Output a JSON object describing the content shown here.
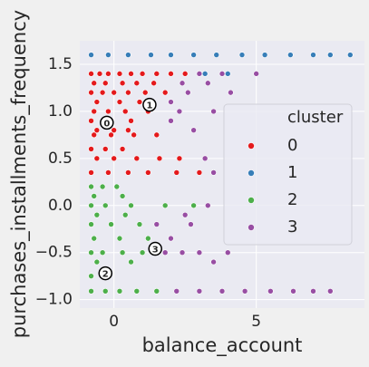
{
  "chart_data": {
    "type": "scatter",
    "x_label": "balance_account",
    "y_label": "purchases_installments_frequency",
    "xlim": [
      -1.2,
      8.8
    ],
    "ylim": [
      -1.09,
      1.75
    ],
    "xticks": [
      0,
      5
    ],
    "yticks": [
      {
        "value": -1.0,
        "label": "−1.0"
      },
      {
        "value": -0.5,
        "label": "−0.5"
      },
      {
        "value": 0.0,
        "label": "0.0"
      },
      0.5,
      {
        "value": 1.0,
        "label": "1.0"
      },
      1.5
    ],
    "grid": true,
    "legend_title": "cluster",
    "legend": "center right",
    "series": [
      {
        "name": "0",
        "color": "#e41a1c",
        "x": [
          -0.8,
          -0.5,
          -0.2,
          0.2,
          0.6,
          1.0,
          1.5,
          2.0,
          2.5,
          -0.7,
          -0.3,
          0.3,
          0.8,
          1.4,
          -0.8,
          -0.4,
          0,
          0.5,
          1.1,
          1.8,
          -0.6,
          0.2,
          0.9,
          -0.7,
          -0.2,
          0.4,
          1.2,
          -0.8,
          0.6,
          -0.6,
          0,
          0.5,
          -0.7,
          -0.1,
          0.7,
          1.5,
          -0.8,
          -0.3,
          0.3,
          -0.6,
          0,
          0.8,
          1.6,
          2.3,
          -0.8,
          -0.2,
          0.5,
          1.2,
          2.2,
          3.0
        ],
        "values": [
          1.4,
          1.4,
          1.4,
          1.4,
          1.4,
          1.4,
          1.4,
          1.4,
          1.4,
          1.3,
          1.3,
          1.3,
          1.3,
          1.3,
          1.2,
          1.2,
          1.2,
          1.2,
          1.2,
          1.2,
          1.1,
          1.1,
          1.1,
          1.0,
          1.0,
          1.0,
          1.0,
          0.9,
          0.9,
          0.8,
          0.8,
          0.8,
          0.75,
          0.75,
          0.75,
          0.75,
          0.6,
          0.6,
          0.6,
          0.5,
          0.5,
          0.5,
          0.5,
          0.5,
          0.35,
          0.35,
          0.35,
          0.35,
          0.35,
          0.35
        ]
      },
      {
        "name": "1",
        "color": "#377eb8",
        "x": [
          -0.8,
          -0.2,
          0.5,
          1.3,
          2.0,
          2.8,
          3.6,
          4.5,
          5.3,
          6.2,
          7.0,
          7.6,
          8.3,
          3.2,
          4.0
        ],
        "values": [
          1.6,
          1.6,
          1.6,
          1.6,
          1.6,
          1.6,
          1.6,
          1.6,
          1.6,
          1.6,
          1.6,
          1.6,
          1.6,
          1.4,
          1.4
        ]
      },
      {
        "name": "2",
        "color": "#4daf4a",
        "x": [
          -0.8,
          -0.4,
          0.1,
          -0.7,
          0.3,
          -0.8,
          -0.3,
          0.6,
          1.8,
          2.8,
          -0.6,
          0.4,
          -0.8,
          -0.1,
          0.9,
          -0.7,
          0.2,
          1.2,
          -0.8,
          -0.4,
          0.3,
          1.0,
          -0.6,
          0.6,
          -0.8,
          -0.2,
          -0.8,
          -0.3,
          0.2,
          0.8,
          1.5
        ],
        "values": [
          0.2,
          0.2,
          0.2,
          0.1,
          0.1,
          0.0,
          0.0,
          0.0,
          0.0,
          0.0,
          -0.1,
          -0.1,
          -0.2,
          -0.2,
          -0.2,
          -0.35,
          -0.35,
          -0.35,
          -0.5,
          -0.5,
          -0.5,
          -0.5,
          -0.6,
          -0.6,
          -0.75,
          -0.75,
          -0.91,
          -0.91,
          -0.91,
          -0.91,
          -0.91
        ]
      },
      {
        "name": "3",
        "color": "#984ea3",
        "x": [
          3.0,
          3.8,
          5.0,
          2.4,
          3.3,
          2.6,
          4.1,
          2.0,
          2.3,
          3.5,
          2.0,
          2.8,
          3.2,
          3.5,
          3.3,
          2.5,
          1.5,
          2.7,
          2.0,
          1.8,
          2.4,
          3.0,
          4.0,
          3.5,
          2.2,
          3.0,
          3.8,
          4.6,
          5.5,
          6.3,
          7.0,
          7.6
        ],
        "values": [
          1.4,
          1.4,
          1.4,
          1.3,
          1.3,
          1.2,
          1.2,
          1.1,
          1.0,
          1.0,
          0.9,
          0.8,
          0.5,
          0.35,
          0.0,
          -0.1,
          -0.2,
          -0.2,
          -0.35,
          -0.5,
          -0.5,
          -0.5,
          -0.5,
          -0.6,
          -0.91,
          -0.91,
          -0.91,
          -0.91,
          -0.91,
          -0.91,
          -0.91,
          -0.91
        ]
      }
    ],
    "centers": [
      {
        "label": "0",
        "x": -0.25,
        "y": 0.88
      },
      {
        "label": "1",
        "x": 1.25,
        "y": 1.07
      },
      {
        "label": "2",
        "x": -0.3,
        "y": -0.72
      },
      {
        "label": "3",
        "x": 1.45,
        "y": -0.46
      }
    ]
  }
}
